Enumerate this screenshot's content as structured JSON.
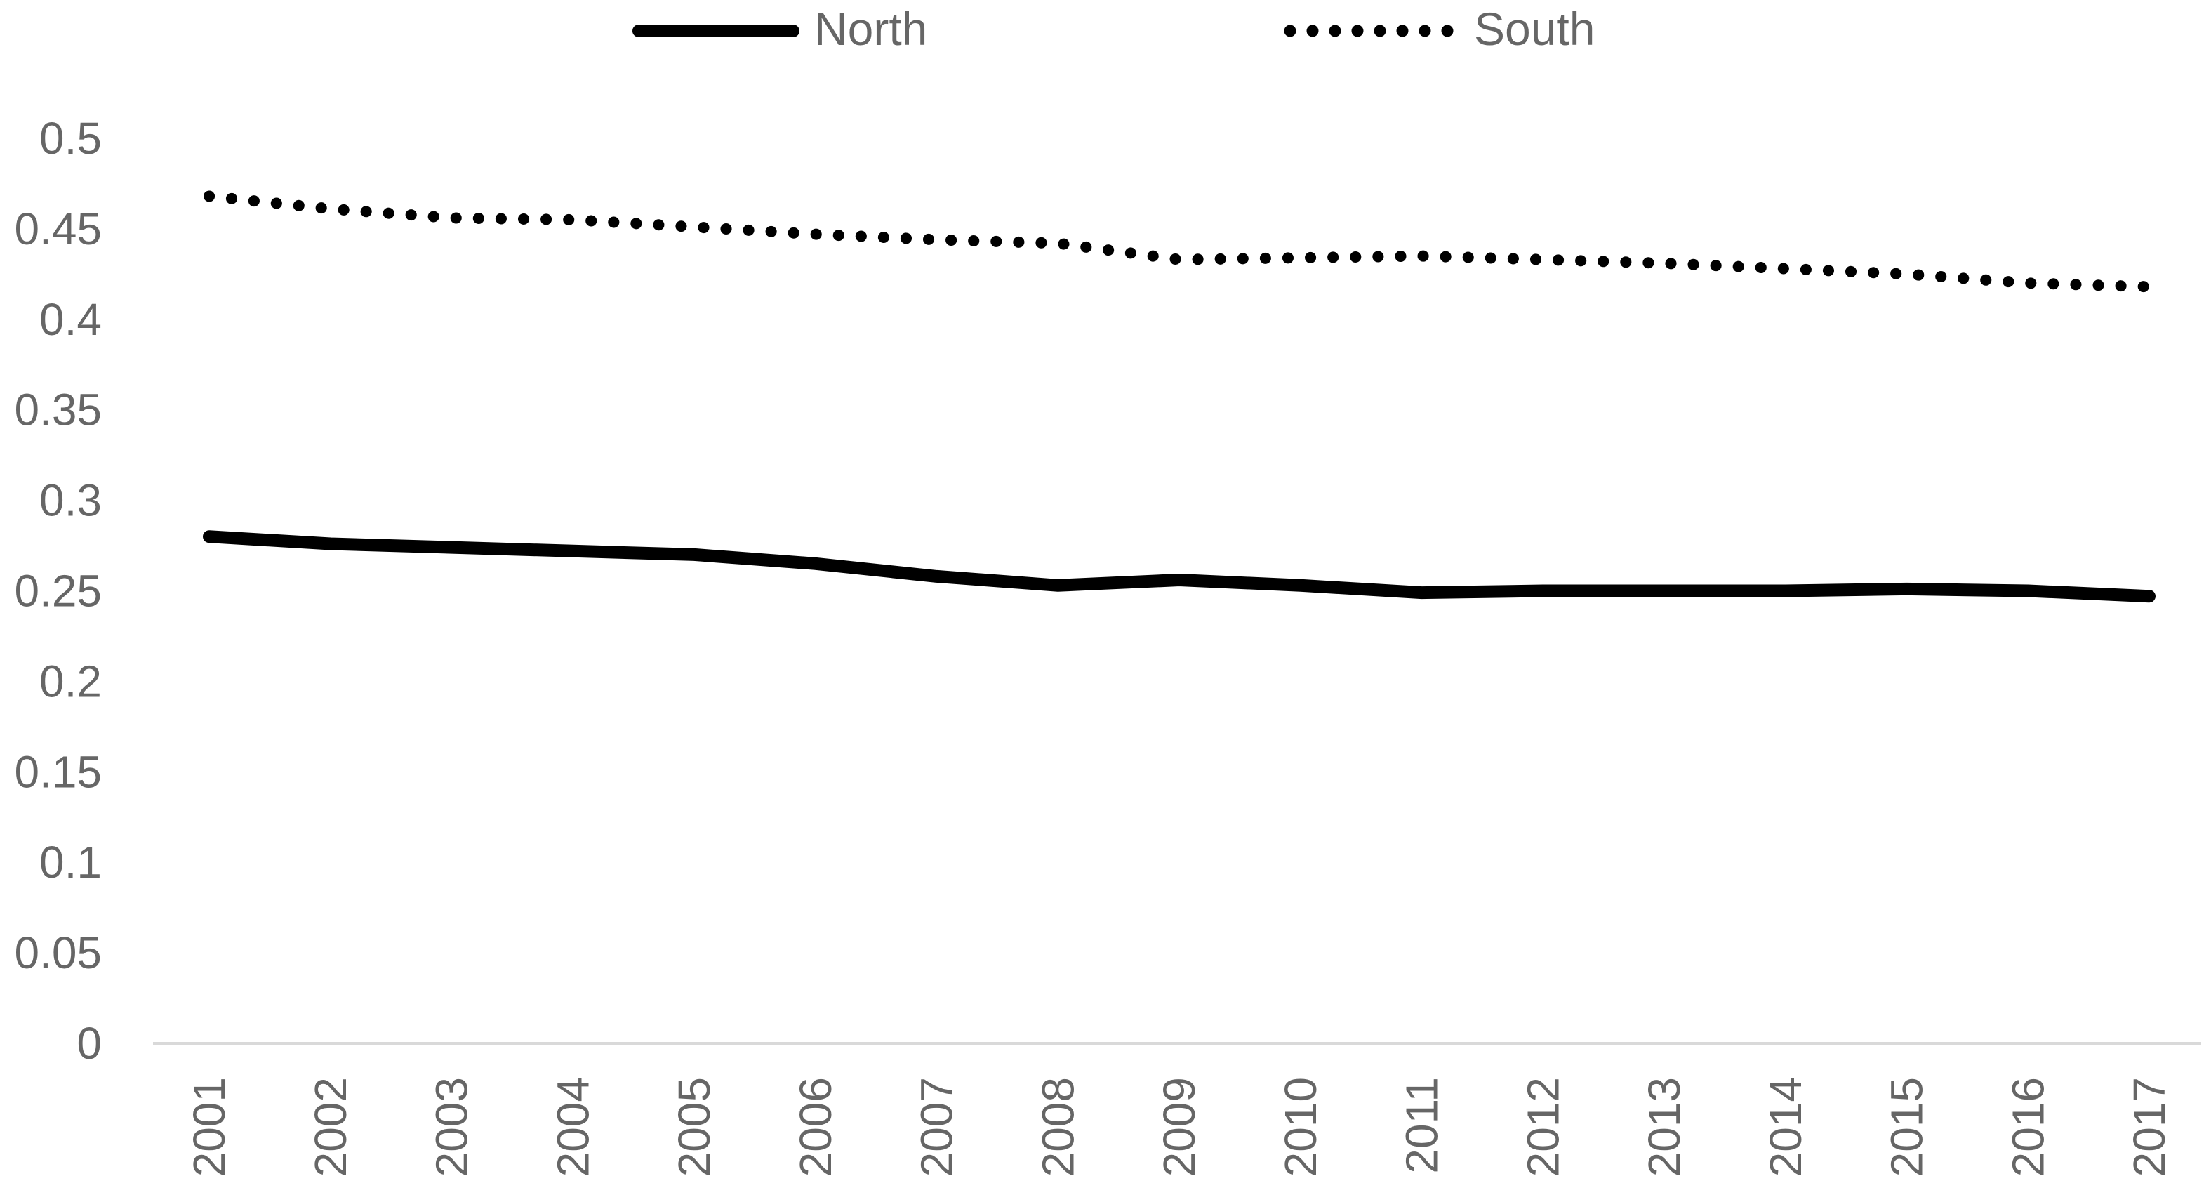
{
  "chart_data": {
    "type": "line",
    "title": "",
    "xlabel": "",
    "ylabel": "",
    "categories": [
      "2001",
      "2002",
      "2003",
      "2004",
      "2005",
      "2006",
      "2007",
      "2008",
      "2009",
      "2010",
      "2011",
      "2012",
      "2013",
      "2014",
      "2015",
      "2016",
      "2017"
    ],
    "y_ticks": [
      "0",
      "0.05",
      "0.1",
      "0.15",
      "0.2",
      "0.25",
      "0.3",
      "0.35",
      "0.4",
      "0.45",
      "0.5"
    ],
    "ylim": [
      0,
      0.5
    ],
    "grid": false,
    "legend_position": "top",
    "series": [
      {
        "name": "North",
        "style": "solid",
        "color": "#000000",
        "values": [
          0.28,
          0.276,
          0.274,
          0.272,
          0.27,
          0.265,
          0.258,
          0.253,
          0.256,
          0.253,
          0.249,
          0.25,
          0.25,
          0.25,
          0.251,
          0.25,
          0.247
        ]
      },
      {
        "name": "South",
        "style": "dotted",
        "color": "#000000",
        "values": [
          0.468,
          0.461,
          0.456,
          0.455,
          0.451,
          0.447,
          0.444,
          0.442,
          0.433,
          0.434,
          0.435,
          0.433,
          0.431,
          0.428,
          0.425,
          0.42,
          0.418
        ]
      }
    ],
    "axis_color": "#d9d9d9",
    "label_color": "#666666"
  }
}
